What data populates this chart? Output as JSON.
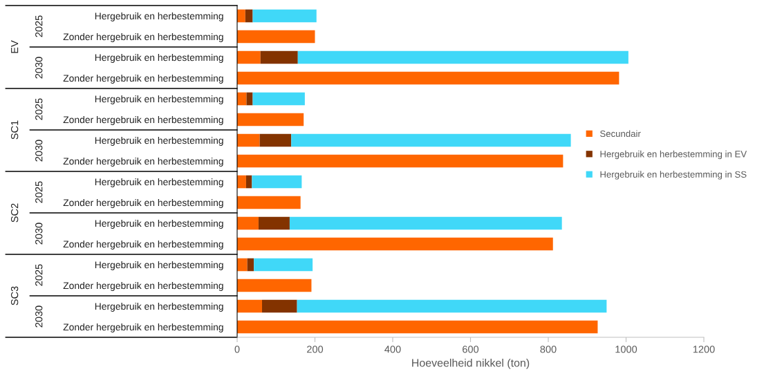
{
  "chart_data": {
    "type": "bar",
    "orientation": "horizontal",
    "stacked": true,
    "xlabel": "Hoeveelheid nikkel (ton)",
    "categories": [
      "Hergebruik en herbestemming",
      "Zonder hergebruik en herbestemming",
      "Hergebruik en herbestemming",
      "Zonder hergebruik en herbestemming",
      "Hergebruik en herbestemming",
      "Zonder hergebruik en herbestemming",
      "Hergebruik en herbestemming",
      "Zonder hergebruik en herbestemming",
      "Hergebruik en herbestemming",
      "Zonder hergebruik en herbestemming",
      "Hergebruik en herbestemming",
      "Zonder hergebruik en herbestemming",
      "Hergebruik en herbestemming",
      "Zonder hergebruik en herbestemming",
      "Hergebruik en herbestemming",
      "Zonder hergebruik en herbestemming"
    ],
    "series": [
      {
        "name": "Secundair",
        "color": "#ff6600",
        "values": [
          21,
          200,
          60,
          982,
          24,
          171,
          58,
          838,
          23,
          163,
          55,
          812,
          26,
          191,
          64,
          927
        ]
      },
      {
        "name": "Hergebruik en herbestemming in EV",
        "color": "#833300",
        "values": [
          19,
          null,
          96,
          null,
          16,
          null,
          81,
          null,
          15,
          null,
          80,
          null,
          17,
          null,
          90,
          null
        ]
      },
      {
        "name": "Hergebruik en herbestemming in SS",
        "color": "#40d8f8",
        "values": [
          164,
          null,
          850,
          null,
          134,
          null,
          719,
          null,
          128,
          null,
          700,
          null,
          151,
          null,
          796,
          null
        ]
      }
    ],
    "annotations": [
      "EV",
      "2025",
      "2030",
      "SC1",
      "2025",
      "2030",
      "SC2",
      "2025",
      "2030",
      "SC3",
      "2025",
      "2030"
    ],
    "xlim": [
      0,
      1200
    ],
    "xticks": [
      0,
      200,
      400,
      600,
      800,
      1000,
      1200
    ],
    "grid": false,
    "legend": "right"
  }
}
